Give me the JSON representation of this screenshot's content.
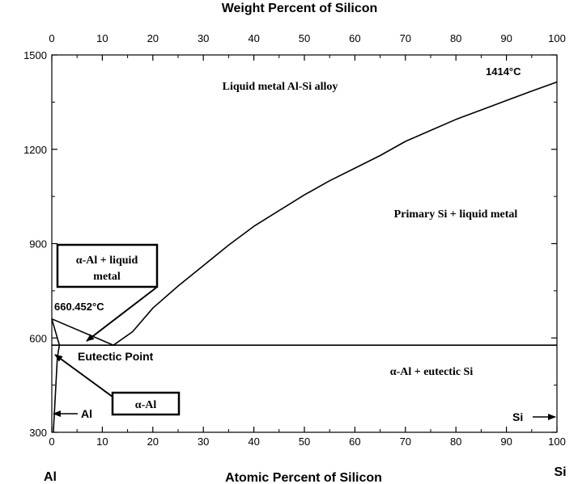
{
  "chart_data": {
    "type": "line",
    "title": "Weight Percent of Silicon",
    "xlabel": "Atomic Percent of Silicon",
    "ylabel": "",
    "xlim": [
      0,
      100
    ],
    "ylim": [
      300,
      1500
    ],
    "grid": false,
    "x_ticks": [
      "0",
      "10",
      "20",
      "30",
      "40",
      "50",
      "60",
      "70",
      "80",
      "90",
      "100"
    ],
    "top_ticks": [
      "0",
      "10",
      "20",
      "30",
      "40",
      "50",
      "60",
      "70",
      "80",
      "90",
      "100"
    ],
    "y_ticks": [
      "300",
      "600",
      "900",
      "1200",
      "1500"
    ],
    "end_labels": {
      "left": "Al",
      "right": "Si"
    },
    "series": [
      {
        "values": [
          [
            12.2,
            577
          ],
          [
            16,
            620
          ],
          [
            20,
            695
          ],
          [
            25,
            765
          ],
          [
            30,
            830
          ],
          [
            35,
            895
          ],
          [
            40,
            955
          ],
          [
            45,
            1005
          ],
          [
            50,
            1055
          ],
          [
            55,
            1100
          ],
          [
            60,
            1140
          ],
          [
            65,
            1180
          ],
          [
            70,
            1225
          ],
          [
            75,
            1260
          ],
          [
            80,
            1295
          ],
          [
            85,
            1325
          ],
          [
            90,
            1355
          ],
          [
            95,
            1385
          ],
          [
            100,
            1414
          ]
        ]
      },
      {
        "values": [
          [
            0,
            660.452
          ],
          [
            12.2,
            577
          ]
        ]
      },
      {
        "values": [
          [
            0,
            577
          ],
          [
            100,
            577
          ]
        ]
      },
      {
        "values": [
          [
            0,
            660.452
          ],
          [
            1.5,
            577
          ],
          [
            1.1,
            540
          ],
          [
            0.3,
            300
          ]
        ]
      }
    ],
    "annotations": {
      "liquid": "Liquid metal Al-Si alloy",
      "si_melt": "1414",
      "si_melt_unit": "°C",
      "primary_si": "Primary Si + liquid metal",
      "al_liquid_line1": "α-Al + liquid",
      "al_liquid_line2": "metal",
      "al_melt": "660.452",
      "al_melt_unit": "°C",
      "eutectic_point": "Eutectic Point",
      "al_eutectic": "α-Al + eutectic Si",
      "alpha_al": "α-Al",
      "al_arrow": "Al",
      "si_arrow": "Si"
    }
  }
}
